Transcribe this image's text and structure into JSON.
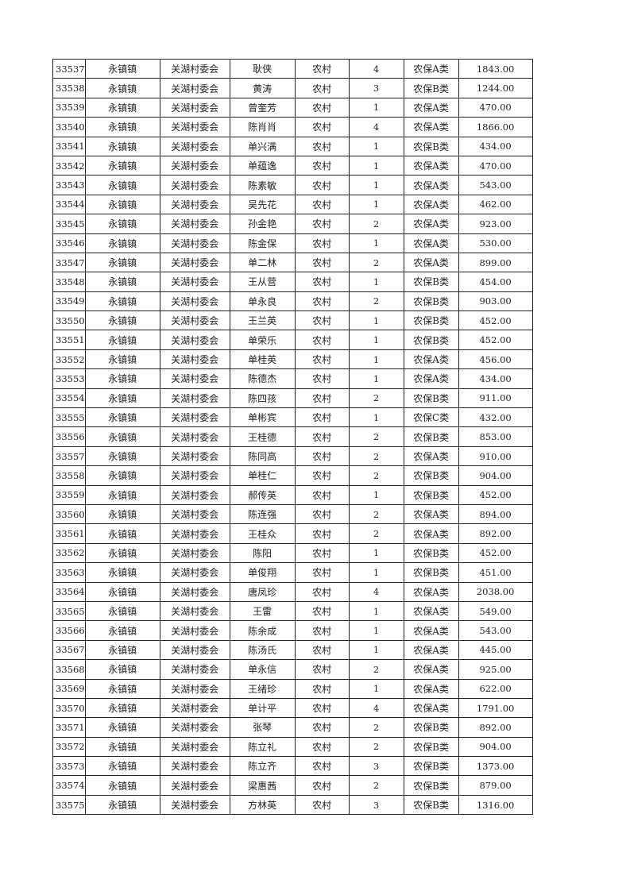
{
  "rows": [
    [
      "33537",
      "永镇镇",
      "关湖村委会",
      "耿侠",
      "农村",
      "4",
      "农保A类",
      "1843.00"
    ],
    [
      "33538",
      "永镇镇",
      "关湖村委会",
      "黄涛",
      "农村",
      "3",
      "农保B类",
      "1244.00"
    ],
    [
      "33539",
      "永镇镇",
      "关湖村委会",
      "曾奎芳",
      "农村",
      "1",
      "农保A类",
      "470.00"
    ],
    [
      "33540",
      "永镇镇",
      "关湖村委会",
      "陈肖肖",
      "农村",
      "4",
      "农保A类",
      "1866.00"
    ],
    [
      "33541",
      "永镇镇",
      "关湖村委会",
      "单兴满",
      "农村",
      "1",
      "农保B类",
      "434.00"
    ],
    [
      "33542",
      "永镇镇",
      "关湖村委会",
      "单蕴逸",
      "农村",
      "1",
      "农保A类",
      "470.00"
    ],
    [
      "33543",
      "永镇镇",
      "关湖村委会",
      "陈素敏",
      "农村",
      "1",
      "农保A类",
      "543.00"
    ],
    [
      "33544",
      "永镇镇",
      "关湖村委会",
      "吴先花",
      "农村",
      "1",
      "农保A类",
      "462.00"
    ],
    [
      "33545",
      "永镇镇",
      "关湖村委会",
      "孙金艳",
      "农村",
      "2",
      "农保A类",
      "923.00"
    ],
    [
      "33546",
      "永镇镇",
      "关湖村委会",
      "陈金保",
      "农村",
      "1",
      "农保A类",
      "530.00"
    ],
    [
      "33547",
      "永镇镇",
      "关湖村委会",
      "单二林",
      "农村",
      "2",
      "农保A类",
      "899.00"
    ],
    [
      "33548",
      "永镇镇",
      "关湖村委会",
      "王从营",
      "农村",
      "1",
      "农保B类",
      "454.00"
    ],
    [
      "33549",
      "永镇镇",
      "关湖村委会",
      "单永良",
      "农村",
      "2",
      "农保B类",
      "903.00"
    ],
    [
      "33550",
      "永镇镇",
      "关湖村委会",
      "王兰英",
      "农村",
      "1",
      "农保B类",
      "452.00"
    ],
    [
      "33551",
      "永镇镇",
      "关湖村委会",
      "单荣乐",
      "农村",
      "1",
      "农保B类",
      "452.00"
    ],
    [
      "33552",
      "永镇镇",
      "关湖村委会",
      "单桂英",
      "农村",
      "1",
      "农保A类",
      "456.00"
    ],
    [
      "33553",
      "永镇镇",
      "关湖村委会",
      "陈德杰",
      "农村",
      "1",
      "农保A类",
      "434.00"
    ],
    [
      "33554",
      "永镇镇",
      "关湖村委会",
      "陈四孩",
      "农村",
      "2",
      "农保B类",
      "911.00"
    ],
    [
      "33555",
      "永镇镇",
      "关湖村委会",
      "单彬宾",
      "农村",
      "1",
      "农保C类",
      "432.00"
    ],
    [
      "33556",
      "永镇镇",
      "关湖村委会",
      "王桂德",
      "农村",
      "2",
      "农保B类",
      "853.00"
    ],
    [
      "33557",
      "永镇镇",
      "关湖村委会",
      "陈同高",
      "农村",
      "2",
      "农保A类",
      "910.00"
    ],
    [
      "33558",
      "永镇镇",
      "关湖村委会",
      "单桂仁",
      "农村",
      "2",
      "农保B类",
      "904.00"
    ],
    [
      "33559",
      "永镇镇",
      "关湖村委会",
      "郝传英",
      "农村",
      "1",
      "农保B类",
      "452.00"
    ],
    [
      "33560",
      "永镇镇",
      "关湖村委会",
      "陈连强",
      "农村",
      "2",
      "农保A类",
      "894.00"
    ],
    [
      "33561",
      "永镇镇",
      "关湖村委会",
      "王桂众",
      "农村",
      "2",
      "农保A类",
      "892.00"
    ],
    [
      "33562",
      "永镇镇",
      "关湖村委会",
      "陈阳",
      "农村",
      "1",
      "农保B类",
      "452.00"
    ],
    [
      "33563",
      "永镇镇",
      "关湖村委会",
      "单俊翔",
      "农村",
      "1",
      "农保B类",
      "451.00"
    ],
    [
      "33564",
      "永镇镇",
      "关湖村委会",
      "唐凤珍",
      "农村",
      "4",
      "农保A类",
      "2038.00"
    ],
    [
      "33565",
      "永镇镇",
      "关湖村委会",
      "王雷",
      "农村",
      "1",
      "农保A类",
      "549.00"
    ],
    [
      "33566",
      "永镇镇",
      "关湖村委会",
      "陈余成",
      "农村",
      "1",
      "农保A类",
      "543.00"
    ],
    [
      "33567",
      "永镇镇",
      "关湖村委会",
      "陈汤氏",
      "农村",
      "1",
      "农保A类",
      "445.00"
    ],
    [
      "33568",
      "永镇镇",
      "关湖村委会",
      "单永信",
      "农村",
      "2",
      "农保A类",
      "925.00"
    ],
    [
      "33569",
      "永镇镇",
      "关湖村委会",
      "王绪珍",
      "农村",
      "1",
      "农保A类",
      "622.00"
    ],
    [
      "33570",
      "永镇镇",
      "关湖村委会",
      "单计平",
      "农村",
      "4",
      "农保A类",
      "1791.00"
    ],
    [
      "33571",
      "永镇镇",
      "关湖村委会",
      "张琴",
      "农村",
      "2",
      "农保B类",
      "892.00"
    ],
    [
      "33572",
      "永镇镇",
      "关湖村委会",
      "陈立礼",
      "农村",
      "2",
      "农保B类",
      "904.00"
    ],
    [
      "33573",
      "永镇镇",
      "关湖村委会",
      "陈立齐",
      "农村",
      "3",
      "农保B类",
      "1373.00"
    ],
    [
      "33574",
      "永镇镇",
      "关湖村委会",
      "梁惠茜",
      "农村",
      "2",
      "农保B类",
      "879.00"
    ],
    [
      "33575",
      "永镇镇",
      "关湖村委会",
      "方林英",
      "农村",
      "3",
      "农保B类",
      "1316.00"
    ]
  ]
}
